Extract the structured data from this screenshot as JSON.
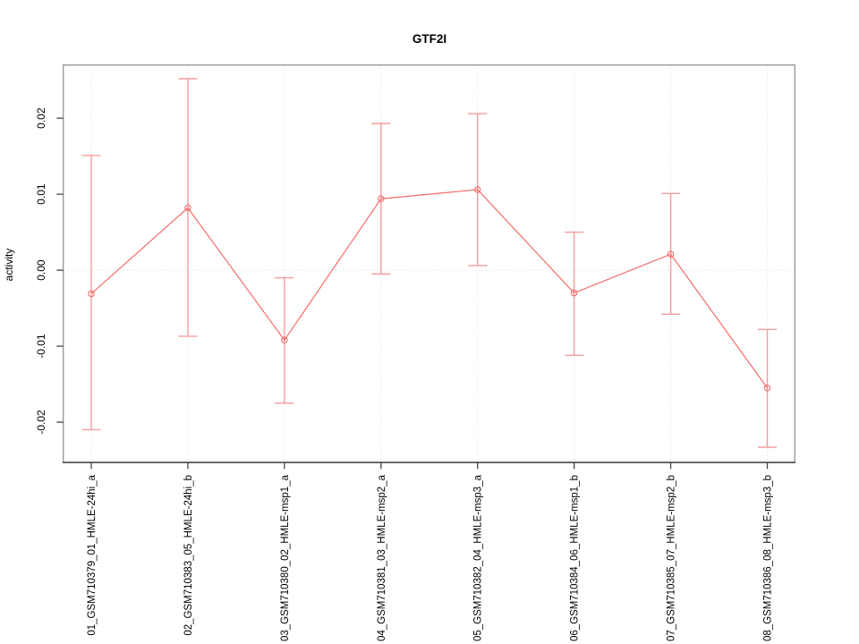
{
  "chart_data": {
    "type": "line",
    "title": "GTF2I",
    "xlabel": "",
    "ylabel": "activity",
    "legend": "none",
    "grid": "dotted vertical line at each category, dotted horizontal line at y=0",
    "categories": [
      "01_GSM710379_01_HMLE-24hi_a",
      "02_GSM710383_05_HMLE-24hi_b",
      "03_GSM710380_02_HMLE-msp1_a",
      "04_GSM710381_03_HMLE-msp2_a",
      "05_GSM710382_04_HMLE-msp3_a",
      "06_GSM710384_06_HMLE-msp1_b",
      "07_GSM710385_07_HMLE-msp2_b",
      "08_GSM710386_08_HMLE-msp3_b"
    ],
    "series": [
      {
        "name": "activity",
        "values": [
          -0.0031,
          0.0082,
          -0.0092,
          0.0094,
          0.0106,
          -0.003,
          0.0021,
          -0.0155
        ],
        "err_low": [
          -0.021,
          -0.0087,
          -0.0175,
          -0.0005,
          0.0006,
          -0.0112,
          -0.0058,
          -0.0233
        ],
        "err_high": [
          0.0151,
          0.0252,
          -0.001,
          0.0193,
          0.0206,
          0.005,
          0.0101,
          -0.0078
        ]
      }
    ],
    "yticks": {
      "values": [
        -0.02,
        -0.01,
        0,
        0.01,
        0.02
      ],
      "labels": [
        "-0.02",
        "-0.01",
        "0.00",
        "0.01",
        "0.02"
      ]
    },
    "ylim": [
      -0.0253,
      0.027
    ],
    "colors": {
      "line": "#f26c6c",
      "marker": "#f26c6c",
      "error_bar": "#f59c9c",
      "grid": "#dedede",
      "zero_line": "#d8d8d8",
      "frame": "#9b9b9b",
      "axis": "#262626",
      "tick": "#444444",
      "text": "#000000"
    }
  }
}
